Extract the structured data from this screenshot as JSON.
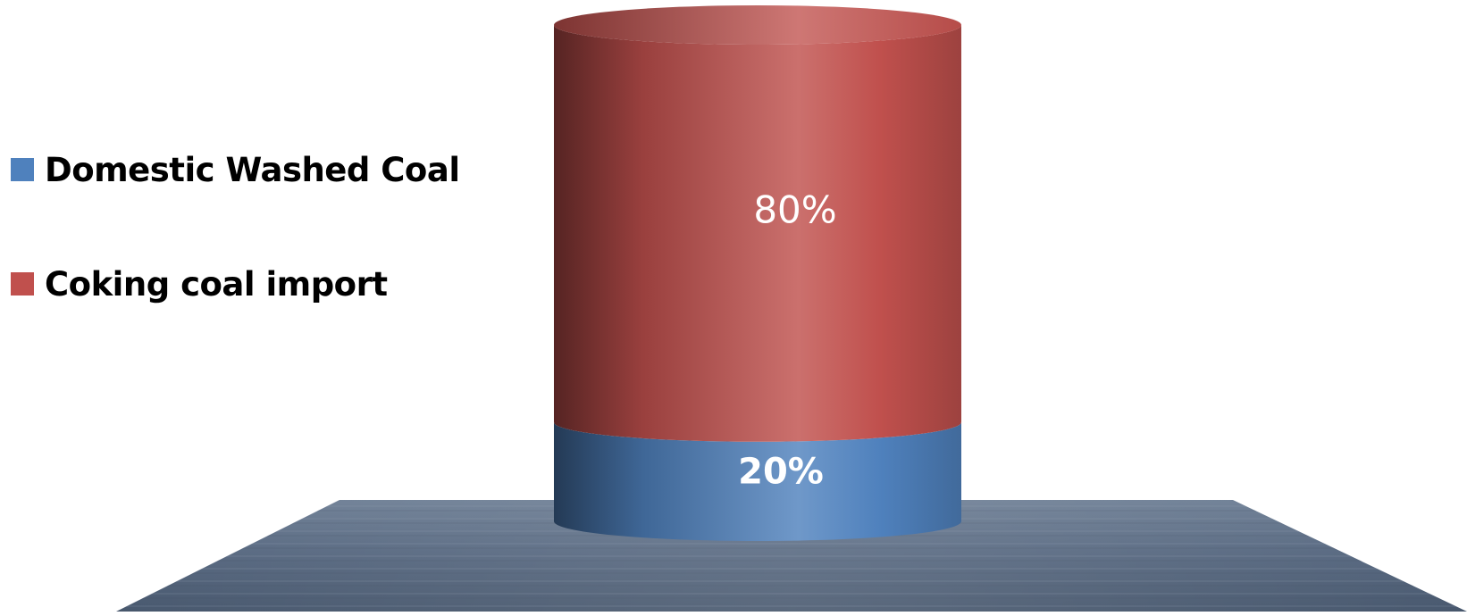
{
  "chart_data": {
    "type": "bar",
    "style": "3d-cylinder-stacked",
    "categories": [
      ""
    ],
    "series": [
      {
        "name": "Domestic Washed Coal",
        "values": [
          20
        ],
        "label": "20%",
        "color": "#4f81bd"
      },
      {
        "name": "Coking coal import",
        "values": [
          80
        ],
        "label": "80%",
        "color": "#c0504d"
      }
    ],
    "ylim": [
      0,
      100
    ],
    "unit": "%",
    "legend_position": "left",
    "grid": false
  }
}
